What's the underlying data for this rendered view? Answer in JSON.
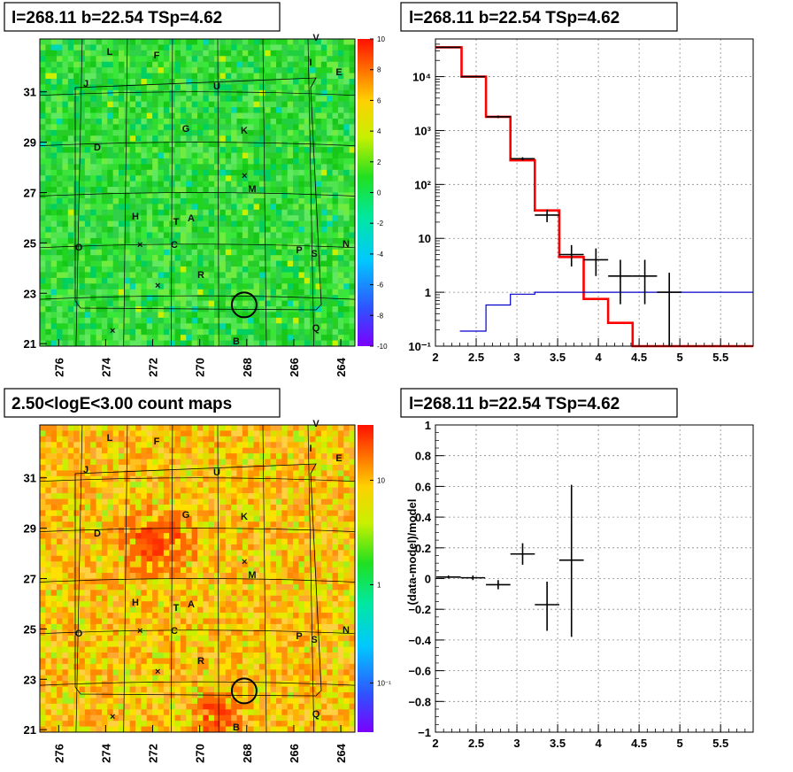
{
  "colors": {
    "model": "#ff0000",
    "background_model": "#0000cc",
    "data": "#000000"
  },
  "chart_data": [
    {
      "type": "heatmap",
      "panel": "top-left",
      "title": "l=268.11 b=22.54 TSp=4.62",
      "x_ticks": [
        "276",
        "274",
        "272",
        "270",
        "268",
        "266",
        "264"
      ],
      "y_ticks": [
        "21",
        "23",
        "25",
        "27",
        "29",
        "31"
      ],
      "xlim": [
        276.8,
        263.4
      ],
      "ylim": [
        20.9,
        33.1
      ],
      "colorbar": {
        "min": -10,
        "max": 10,
        "ticks": [
          "10",
          "8",
          "6",
          "4",
          "2",
          "0",
          "-2",
          "-4",
          "-6",
          "-8",
          "-10"
        ]
      },
      "markers": [
        "L",
        "F",
        "V",
        "I",
        "E",
        "J",
        "U",
        "G",
        "K",
        "D",
        "M",
        "H",
        "T",
        "A",
        "O",
        "C",
        "P",
        "S",
        "N",
        "R",
        "Q",
        "B"
      ],
      "circle": {
        "l": 268.11,
        "b": 22.54
      }
    },
    {
      "type": "line",
      "panel": "top-right",
      "title": "l=268.11 b=22.54 TSp=4.62",
      "x_ticks": [
        "2",
        "2.5",
        "3",
        "3.5",
        "4",
        "4.5",
        "5",
        "5.5"
      ],
      "y_ticks": [
        "10⁻¹",
        "1",
        "10",
        "10²",
        "10³",
        "10⁴"
      ],
      "y_scale": "log",
      "xlim": [
        2,
        5.9
      ],
      "ylim": [
        0.1,
        50000
      ],
      "grid": true,
      "series": [
        {
          "style": "step",
          "color": "#ff0000",
          "edges": [
            2.0,
            2.32,
            2.62,
            2.92,
            3.22,
            3.52,
            3.82,
            4.12,
            4.42,
            5.9
          ],
          "values": [
            35000,
            10000,
            1800,
            280,
            33,
            4.5,
            0.75,
            0.27,
            0.1
          ]
        },
        {
          "style": "step",
          "color": "#0000cc",
          "edges": [
            2.3,
            2.62,
            2.92,
            3.22,
            5.9
          ],
          "values": [
            0.19,
            0.58,
            0.92,
            1.0
          ]
        },
        {
          "style": "errorbar",
          "color": "#000000",
          "x": [
            2.16,
            2.46,
            2.77,
            3.07,
            3.37,
            3.67,
            3.97,
            4.27,
            4.57,
            4.87
          ],
          "xerr": 0.15,
          "y": [
            35000,
            10000,
            1800,
            300,
            27,
            5,
            4,
            2,
            2,
            1
          ],
          "ylo": [
            34000,
            9700,
            1700,
            280,
            20,
            3,
            2,
            0.6,
            0.6,
            0.1
          ],
          "yhi": [
            36000,
            10300,
            1900,
            320,
            34,
            7.5,
            6.5,
            4,
            4,
            2.3
          ]
        }
      ]
    },
    {
      "type": "heatmap",
      "panel": "bottom-left",
      "title": "2.50<logE<3.00 count maps",
      "x_ticks": [
        "276",
        "274",
        "272",
        "270",
        "268",
        "266",
        "264"
      ],
      "y_ticks": [
        "21",
        "23",
        "25",
        "27",
        "29",
        "31"
      ],
      "xlim": [
        276.8,
        263.4
      ],
      "ylim": [
        20.9,
        33.1
      ],
      "colorbar": {
        "scale": "log",
        "ticks": [
          "10",
          "1",
          "10⁻¹"
        ]
      },
      "markers": [
        "L",
        "F",
        "V",
        "I",
        "E",
        "J",
        "U",
        "G",
        "K",
        "D",
        "M",
        "H",
        "T",
        "A",
        "O",
        "C",
        "P",
        "S",
        "N",
        "R",
        "Q",
        "B"
      ],
      "circle": {
        "l": 268.11,
        "b": 22.54
      }
    },
    {
      "type": "scatter",
      "panel": "bottom-right",
      "title": "l=268.11 b=22.54 TSp=4.62",
      "ylabel": "(data-model)/model",
      "x_ticks": [
        "2",
        "2.5",
        "3",
        "3.5",
        "4",
        "4.5",
        "5",
        "5.5"
      ],
      "y_ticks": [
        "1",
        "0.8",
        "0.6",
        "0.4",
        "0.2",
        "0",
        "−0.2",
        "−0.4",
        "−0.6",
        "−0.8",
        "−1"
      ],
      "xlim": [
        2,
        5.9
      ],
      "ylim": [
        -1,
        1
      ],
      "grid": true,
      "series": [
        {
          "style": "errorbar",
          "color": "#000000",
          "x": [
            2.16,
            2.46,
            2.77,
            3.07,
            3.37,
            3.67
          ],
          "xerr": 0.15,
          "y": [
            0.01,
            0.005,
            -0.04,
            0.16,
            -0.17,
            0.12
          ],
          "ylo": [
            0.0,
            -0.01,
            -0.07,
            0.09,
            -0.34,
            -0.38
          ],
          "yhi": [
            0.02,
            0.02,
            -0.01,
            0.23,
            -0.02,
            0.61
          ]
        }
      ]
    }
  ]
}
